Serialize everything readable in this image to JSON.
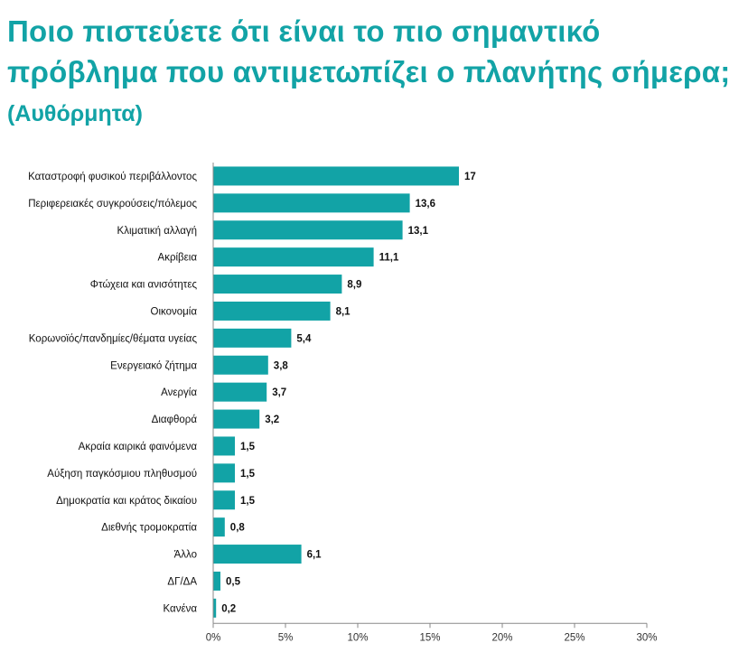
{
  "header": {
    "title": "Ποιο πιστεύετε ότι είναι το πιο σημαντικό πρόβλημα που αντιμετωπίζει ο πλανήτης σήμερα;",
    "subtitle": "(Αυθόρμητα)"
  },
  "chart_data": {
    "type": "bar",
    "orientation": "horizontal",
    "title": "Ποιο πιστεύετε ότι είναι το πιο σημαντικό πρόβλημα που αντιμετωπίζει ο πλανήτης σήμερα;",
    "subtitle": "(Αυθόρμητα)",
    "categories": [
      "Καταστροφή φυσικού περιβάλλοντος",
      "Περιφερειακές συγκρούσεις/πόλεμος",
      "Κλιματική αλλαγή",
      "Ακρίβεια",
      "Φτώχεια και ανισότητες",
      "Οικονομία",
      "Κορωνοϊός/πανδημίες/θέματα υγείας",
      "Ενεργειακό ζήτημα",
      "Ανεργία",
      "Διαφθορά",
      "Ακραία καιρικά φαινόμενα",
      "Αύξηση παγκόσμιου πληθυσμού",
      "Δημοκρατία και κράτος δικαίου",
      "Διεθνής τρομοκρατία",
      "Άλλο",
      "ΔΓ/ΔΑ",
      "Κανένα"
    ],
    "values": [
      17,
      13.6,
      13.1,
      11.1,
      8.9,
      8.1,
      5.4,
      3.8,
      3.7,
      3.2,
      1.5,
      1.5,
      1.5,
      0.8,
      6.1,
      0.5,
      0.2
    ],
    "value_labels": [
      "17",
      "13,6",
      "13,1",
      "11,1",
      "8,9",
      "8,1",
      "5,4",
      "3,8",
      "3,7",
      "3,2",
      "1,5",
      "1,5",
      "1,5",
      "0,8",
      "6,1",
      "0,5",
      "0,2"
    ],
    "xlim": [
      0,
      30
    ],
    "x_ticks": [
      "0%",
      "5%",
      "10%",
      "15%",
      "20%",
      "25%",
      "30%"
    ],
    "grid": false,
    "bar_color": "#12a3a6"
  }
}
